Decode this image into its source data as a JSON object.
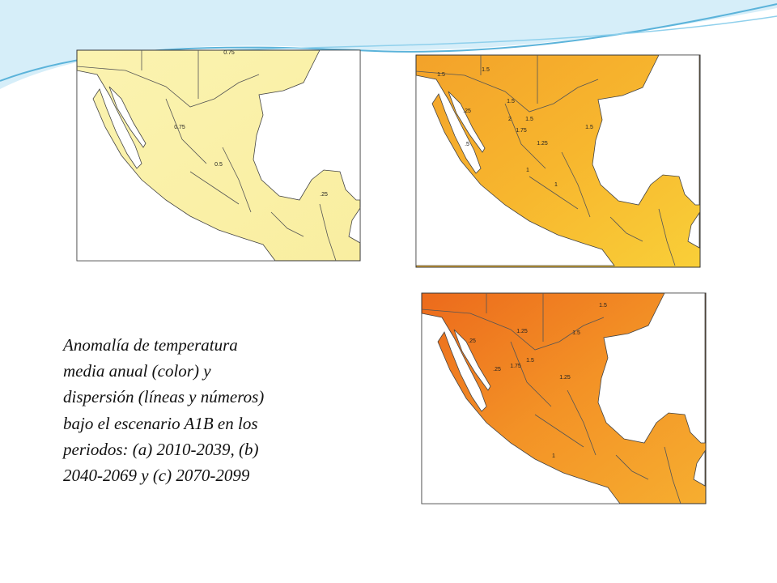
{
  "maps": [
    {
      "contour_labels": [
        "0.75",
        "0.75",
        "0.5",
        ".25"
      ]
    },
    {
      "contour_labels": [
        "1.5",
        "1.5",
        ".25",
        "1.5",
        "2",
        "1.5",
        "1.75",
        "1.5",
        "1.25",
        ".5",
        "1",
        "1"
      ]
    },
    {
      "contour_labels": [
        "1.5",
        ".25",
        "1.25",
        "1.5",
        ".25",
        "1.5",
        "1.75",
        "1.25",
        "1"
      ]
    }
  ],
  "caption": {
    "lines": [
      "Anomalía de temperatura",
      "media anual (color) y",
      "dispersión (líneas y números)",
      "bajo el escenario A1B en los",
      "periodos: (a) 2010-2039, (b)",
      "2040-2069 y (c) 2070-2099"
    ]
  }
}
